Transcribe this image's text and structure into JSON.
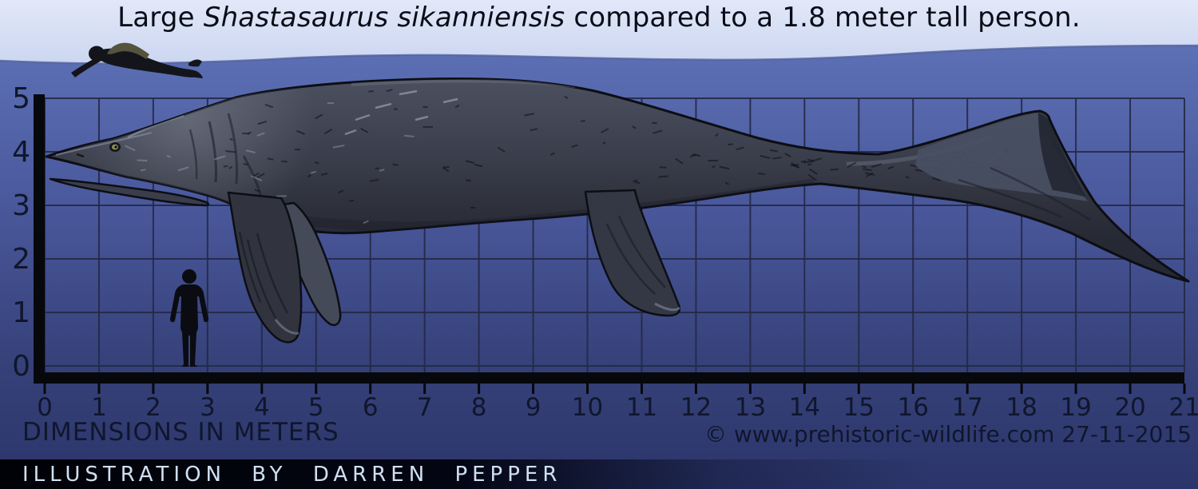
{
  "title": {
    "prefix": "Large ",
    "species_italic": "Shastasaurus sikanniensis",
    "suffix": " compared to a 1.8 meter tall person."
  },
  "axes": {
    "x_label": "DIMENSIONS IN METERS",
    "x_ticks": [
      "0",
      "1",
      "2",
      "3",
      "4",
      "5",
      "6",
      "7",
      "8",
      "9",
      "10",
      "11",
      "12",
      "13",
      "14",
      "15",
      "16",
      "17",
      "18",
      "19",
      "20",
      "21"
    ],
    "y_ticks_top_to_bottom": [
      "5",
      "4",
      "3",
      "2",
      "1",
      "0"
    ],
    "x_range_meters": [
      0,
      21
    ],
    "y_range_meters": [
      0,
      5
    ],
    "grid_interval_meters": 1
  },
  "figures": {
    "animal": "Shastasaurus sikanniensis silhouette",
    "standing_person": "1.8 meter tall standing person silhouette",
    "swimmer": "person swimming at the water surface"
  },
  "footer": {
    "credit": "ILLUSTRATION BY DARREN PEPPER",
    "copyright": "© www.prehistoric-wildlife.com 27-11-2015"
  },
  "colors": {
    "sky_top": "#e0e7f7",
    "sky_bottom": "#c2cfee",
    "ocean_surface": "#5c6fb4",
    "ocean_deep": "#2c366b",
    "grid_line": "#232947",
    "axis_bar": "#07080c",
    "body": "#3d4250",
    "eye": "#8f9252",
    "label_text": "#10162c",
    "credit_text": "#cfe0f2"
  }
}
